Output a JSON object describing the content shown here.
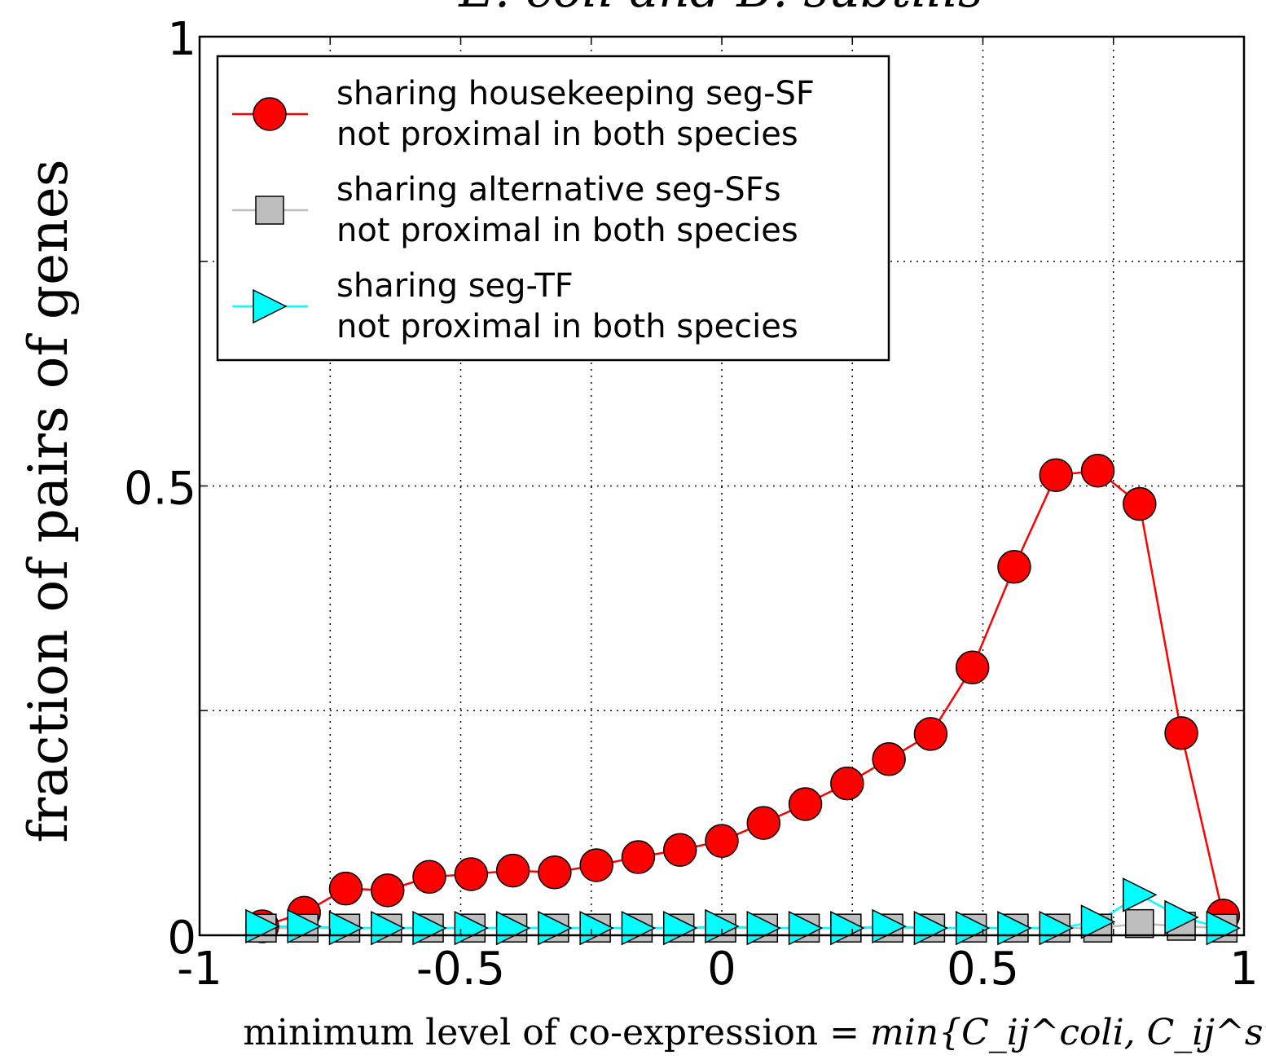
{
  "chart_data": {
    "type": "line",
    "title": "E. coli and B. subtilis",
    "xlabel_prefix": "minimum level of co-expression = ",
    "xlabel_formula": "min{C_ij^coli, C_ij^subtilis}",
    "ylabel": "fraction of pairs of genes",
    "xlim": [
      -1,
      1
    ],
    "ylim": [
      0,
      1
    ],
    "xticks": [
      -1,
      -0.5,
      0,
      0.5,
      1
    ],
    "xtick_labels": [
      "-1",
      "-0.5",
      "0",
      "0.5",
      "1"
    ],
    "yticks": [
      0,
      0.5,
      1
    ],
    "ytick_labels": [
      "0",
      "0.5",
      "1"
    ],
    "grid": true,
    "legend_position": "top-left",
    "x": [
      -0.88,
      -0.8,
      -0.72,
      -0.64,
      -0.56,
      -0.48,
      -0.4,
      -0.32,
      -0.24,
      -0.16,
      -0.08,
      0.0,
      0.08,
      0.16,
      0.24,
      0.32,
      0.4,
      0.48,
      0.56,
      0.64,
      0.72,
      0.8,
      0.88,
      0.96
    ],
    "series": [
      {
        "name": "sharing housekeeping seg-SF not proximal in both species",
        "legend_lines": [
          "sharing housekeeping seg-SF",
          "not proximal in both species"
        ],
        "marker": "circle",
        "color": "#ff0000",
        "values": [
          0.01,
          0.025,
          0.052,
          0.05,
          0.065,
          0.068,
          0.072,
          0.07,
          0.078,
          0.087,
          0.095,
          0.105,
          0.125,
          0.146,
          0.169,
          0.196,
          0.224,
          0.298,
          0.41,
          0.512,
          0.517,
          0.48,
          0.225,
          0.022
        ]
      },
      {
        "name": "sharing alternative seg-SFs not proximal in both species",
        "legend_lines": [
          "sharing alternative seg-SFs",
          "not proximal in both species"
        ],
        "marker": "square",
        "color": "#bebebe",
        "values": [
          0.008,
          0.008,
          0.008,
          0.008,
          0.008,
          0.008,
          0.008,
          0.008,
          0.008,
          0.008,
          0.008,
          0.008,
          0.008,
          0.008,
          0.008,
          0.008,
          0.008,
          0.008,
          0.008,
          0.008,
          0.008,
          0.013,
          0.01,
          0.008
        ]
      },
      {
        "name": "sharing seg-TF not proximal in both species",
        "legend_lines": [
          "sharing seg-TF",
          "not proximal in both species"
        ],
        "marker": "triangle-right",
        "color": "#00ffff",
        "values": [
          0.01,
          0.01,
          0.008,
          0.008,
          0.008,
          0.008,
          0.008,
          0.008,
          0.008,
          0.008,
          0.008,
          0.01,
          0.008,
          0.008,
          0.008,
          0.01,
          0.008,
          0.008,
          0.008,
          0.008,
          0.015,
          0.045,
          0.02,
          0.008
        ]
      }
    ]
  }
}
